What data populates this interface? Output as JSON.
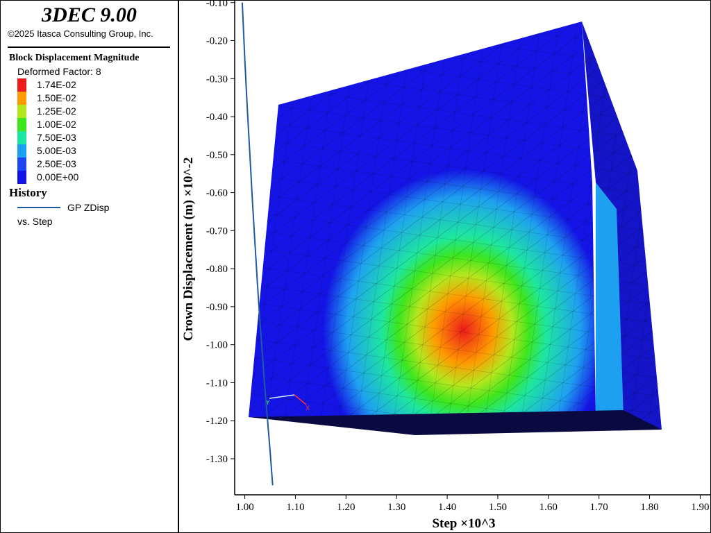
{
  "header": {
    "app_title": "3DEC 9.00",
    "copyright": "©2025 Itasca Consulting Group, Inc."
  },
  "legend": {
    "block_title": "Block  Displacement Magnitude",
    "deformed_factor": "Deformed Factor: 8",
    "colorbar": [
      {
        "label": "1.74E-02",
        "color": "#ee1b1b"
      },
      {
        "label": "1.50E-02",
        "color": "#ff9a00"
      },
      {
        "label": "1.25E-02",
        "color": "#b4e61e"
      },
      {
        "label": "1.00E-02",
        "color": "#3ce61e"
      },
      {
        "label": "7.50E-03",
        "color": "#1ee6a0"
      },
      {
        "label": "5.00E-03",
        "color": "#1ea0f0"
      },
      {
        "label": "2.50E-03",
        "color": "#1e46f0"
      },
      {
        "label": "0.00E+00",
        "color": "#1414e6"
      }
    ],
    "history_title": "History",
    "history_series": "GP ZDisp",
    "history_vs": "vs. Step",
    "history_line_color": "#1f5aa0"
  },
  "chart_data": {
    "type": "line",
    "title": "",
    "xlabel": "Step ×10^3",
    "ylabel": "Crown Displacement (m) ×10^-2",
    "xlim": [
      0.98,
      1.92
    ],
    "ylim": [
      -1.395,
      -0.095
    ],
    "xticks": [
      "1.00",
      "1.10",
      "1.20",
      "1.30",
      "1.40",
      "1.50",
      "1.60",
      "1.70",
      "1.80",
      "1.90"
    ],
    "yticks": [
      "-0.10",
      "-0.20",
      "-0.30",
      "-0.40",
      "-0.50",
      "-0.60",
      "-0.70",
      "-0.80",
      "-0.90",
      "-1.00",
      "-1.10",
      "-1.20",
      "-1.30"
    ],
    "series": [
      {
        "name": "GP ZDisp",
        "x": [
          0.995,
          0.997,
          1.0,
          1.005,
          1.01,
          1.015,
          1.02,
          1.025,
          1.03,
          1.035,
          1.04,
          1.045,
          1.05,
          1.055
        ],
        "y": [
          -0.1,
          -0.16,
          -0.25,
          -0.38,
          -0.5,
          -0.62,
          -0.73,
          -0.84,
          -0.94,
          -1.03,
          -1.12,
          -1.2,
          -1.28,
          -1.37
        ]
      }
    ],
    "grid": false
  }
}
